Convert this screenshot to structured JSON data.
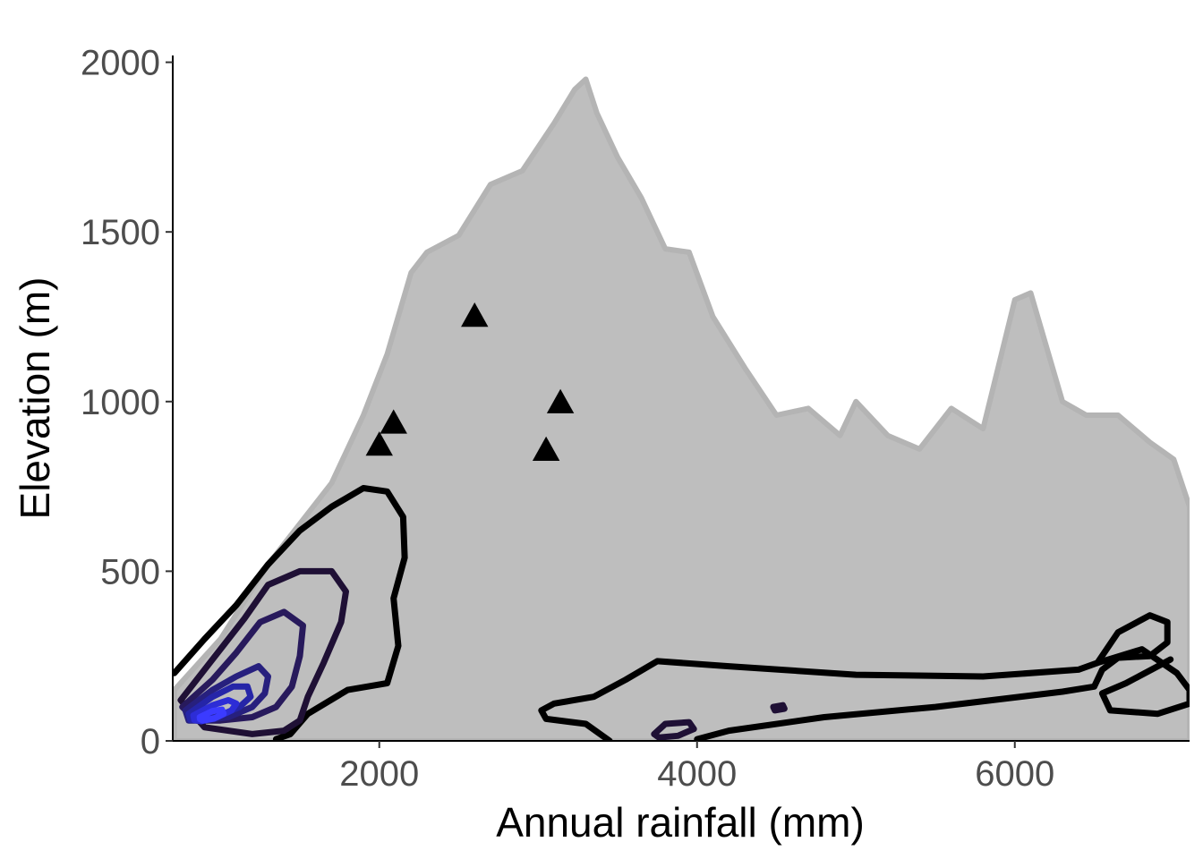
{
  "chart_data": {
    "type": "scatter",
    "title": "",
    "xlabel": "Annual rainfall (mm)",
    "ylabel": "Elevation (m)",
    "xlim": [
      700,
      7100
    ],
    "ylim": [
      0,
      2020
    ],
    "x_ticks": [
      {
        "value": 2000,
        "label": "2000"
      },
      {
        "value": 4000,
        "label": "4000"
      },
      {
        "value": 6000,
        "label": "6000"
      }
    ],
    "y_ticks": [
      {
        "value": 0,
        "label": "0"
      },
      {
        "value": 500,
        "label": "500"
      },
      {
        "value": 1000,
        "label": "1000"
      },
      {
        "value": 1500,
        "label": "1500"
      },
      {
        "value": 2000,
        "label": "2000"
      }
    ],
    "grid": false,
    "legend": "none",
    "colors": {
      "background_points": "#bebebe",
      "triangles": "#000000",
      "contour_high_density": "#1a1aff",
      "contour_low_density": "#000000",
      "tick_text": "#4d4d4d"
    },
    "background_points_envelope": {
      "description_free": true,
      "upper": [
        [
          710,
          150
        ],
        [
          1000,
          300
        ],
        [
          1300,
          520
        ],
        [
          1500,
          640
        ],
        [
          1700,
          760
        ],
        [
          1900,
          960
        ],
        [
          2050,
          1140
        ],
        [
          2200,
          1380
        ],
        [
          2300,
          1440
        ],
        [
          2500,
          1490
        ],
        [
          2700,
          1640
        ],
        [
          2900,
          1680
        ],
        [
          3100,
          1820
        ],
        [
          3230,
          1920
        ],
        [
          3300,
          1950
        ],
        [
          3370,
          1850
        ],
        [
          3500,
          1720
        ],
        [
          3650,
          1600
        ],
        [
          3800,
          1450
        ],
        [
          3950,
          1440
        ],
        [
          4100,
          1250
        ],
        [
          4300,
          1100
        ],
        [
          4500,
          960
        ],
        [
          4700,
          980
        ],
        [
          4900,
          900
        ],
        [
          5000,
          1000
        ],
        [
          5200,
          900
        ],
        [
          5400,
          860
        ],
        [
          5600,
          980
        ],
        [
          5800,
          920
        ],
        [
          6000,
          1300
        ],
        [
          6100,
          1320
        ],
        [
          6300,
          1000
        ],
        [
          6450,
          960
        ],
        [
          6650,
          960
        ],
        [
          6850,
          880
        ],
        [
          7000,
          830
        ],
        [
          7100,
          690
        ]
      ],
      "lower": [
        [
          7100,
          0
        ],
        [
          6000,
          0
        ],
        [
          5200,
          0
        ],
        [
          4000,
          0
        ],
        [
          3000,
          0
        ],
        [
          2000,
          0
        ],
        [
          1200,
          0
        ],
        [
          710,
          0
        ]
      ]
    },
    "series": [
      {
        "type": "triangles",
        "points": [
          {
            "x": 2000,
            "y": 870
          },
          {
            "x": 2090,
            "y": 935
          },
          {
            "x": 2600,
            "y": 1250
          },
          {
            "x": 3050,
            "y": 855
          },
          {
            "x": 3140,
            "y": 995
          }
        ]
      },
      {
        "type": "density_contours",
        "contours": [
          {
            "level": 1,
            "color": "#000000",
            "points": [
              [
                710,
                200
              ],
              [
                900,
                300
              ],
              [
                1100,
                400
              ],
              [
                1300,
                520
              ],
              [
                1500,
                620
              ],
              [
                1700,
                690
              ],
              [
                1900,
                745
              ],
              [
                2050,
                735
              ],
              [
                2150,
                660
              ],
              [
                2160,
                540
              ],
              [
                2090,
                420
              ],
              [
                2120,
                280
              ],
              [
                2050,
                170
              ],
              [
                1800,
                150
              ],
              [
                1550,
                80
              ],
              [
                1440,
                20
              ],
              [
                1350,
                5
              ]
            ]
          },
          {
            "level": 1,
            "color": "#000000",
            "points": [
              [
                3450,
                0
              ],
              [
                3300,
                50
              ],
              [
                3050,
                65
              ],
              [
                3020,
                90
              ],
              [
                3100,
                110
              ],
              [
                3350,
                130
              ],
              [
                3550,
                180
              ],
              [
                3750,
                235
              ],
              [
                4200,
                220
              ],
              [
                5000,
                195
              ],
              [
                5800,
                190
              ],
              [
                6400,
                210
              ],
              [
                6520,
                230
              ],
              [
                6650,
                320
              ],
              [
                6850,
                370
              ],
              [
                6960,
                350
              ],
              [
                6960,
                290
              ],
              [
                6850,
                250
              ],
              [
                6650,
                245
              ],
              [
                6550,
                210
              ],
              [
                6500,
                160
              ],
              [
                6300,
                145
              ],
              [
                5500,
                100
              ],
              [
                4800,
                70
              ],
              [
                4200,
                30
              ],
              [
                4000,
                5
              ]
            ]
          },
          {
            "level": 1,
            "color": "#000000",
            "points": [
              [
                6520,
                230
              ],
              [
                6800,
                270
              ],
              [
                7020,
                200
              ],
              [
                7100,
                150
              ],
              [
                7100,
                110
              ],
              [
                6900,
                80
              ],
              [
                6600,
                90
              ],
              [
                6550,
                140
              ],
              [
                6700,
                170
              ],
              [
                6900,
                220
              ],
              [
                6980,
                240
              ]
            ]
          },
          {
            "level": 2,
            "color": "#1f1035",
            "points": [
              [
                750,
                120
              ],
              [
                950,
                240
              ],
              [
                1150,
                360
              ],
              [
                1300,
                460
              ],
              [
                1500,
                500
              ],
              [
                1700,
                500
              ],
              [
                1790,
                440
              ],
              [
                1760,
                350
              ],
              [
                1650,
                230
              ],
              [
                1550,
                130
              ],
              [
                1500,
                60
              ],
              [
                1400,
                30
              ],
              [
                1200,
                20
              ],
              [
                900,
                40
              ]
            ]
          },
          {
            "level": 2,
            "color": "#1f1035",
            "points": [
              [
                3730,
                20
              ],
              [
                3800,
                50
              ],
              [
                3950,
                55
              ],
              [
                3980,
                35
              ],
              [
                3880,
                15
              ],
              [
                3760,
                10
              ],
              [
                3730,
                20
              ]
            ]
          },
          {
            "level": 2,
            "color": "#1f1035",
            "points": [
              [
                4480,
                100
              ],
              [
                4540,
                105
              ],
              [
                4550,
                95
              ],
              [
                4490,
                90
              ],
              [
                4480,
                100
              ]
            ]
          },
          {
            "level": 3,
            "color": "#281a5c",
            "points": [
              [
                760,
                100
              ],
              [
                950,
                180
              ],
              [
                1100,
                260
              ],
              [
                1250,
                350
              ],
              [
                1400,
                380
              ],
              [
                1520,
                340
              ],
              [
                1500,
                250
              ],
              [
                1450,
                160
              ],
              [
                1350,
                100
              ],
              [
                1200,
                70
              ],
              [
                1000,
                60
              ],
              [
                850,
                60
              ]
            ]
          },
          {
            "level": 4,
            "color": "#27207e",
            "points": [
              [
                780,
                90
              ],
              [
                950,
                150
              ],
              [
                1100,
                190
              ],
              [
                1240,
                220
              ],
              [
                1300,
                190
              ],
              [
                1280,
                140
              ],
              [
                1200,
                100
              ],
              [
                1050,
                70
              ],
              [
                900,
                60
              ],
              [
                800,
                60
              ]
            ]
          },
          {
            "level": 5,
            "color": "#2525a8",
            "points": [
              [
                800,
                80
              ],
              [
                950,
                130
              ],
              [
                1080,
                160
              ],
              [
                1170,
                160
              ],
              [
                1190,
                130
              ],
              [
                1120,
                100
              ],
              [
                1000,
                75
              ],
              [
                880,
                60
              ],
              [
                810,
                62
              ]
            ]
          },
          {
            "level": 6,
            "color": "#2d2dd6",
            "points": [
              [
                830,
                75
              ],
              [
                950,
                105
              ],
              [
                1050,
                120
              ],
              [
                1100,
                110
              ],
              [
                1070,
                90
              ],
              [
                980,
                70
              ],
              [
                880,
                58
              ],
              [
                835,
                62
              ]
            ]
          },
          {
            "level": 7,
            "color": "#3b3bff",
            "points": [
              [
                870,
                70
              ],
              [
                950,
                88
              ],
              [
                1010,
                92
              ],
              [
                1020,
                80
              ],
              [
                960,
                66
              ],
              [
                890,
                60
              ],
              [
                872,
                64
              ]
            ]
          }
        ]
      }
    ]
  }
}
